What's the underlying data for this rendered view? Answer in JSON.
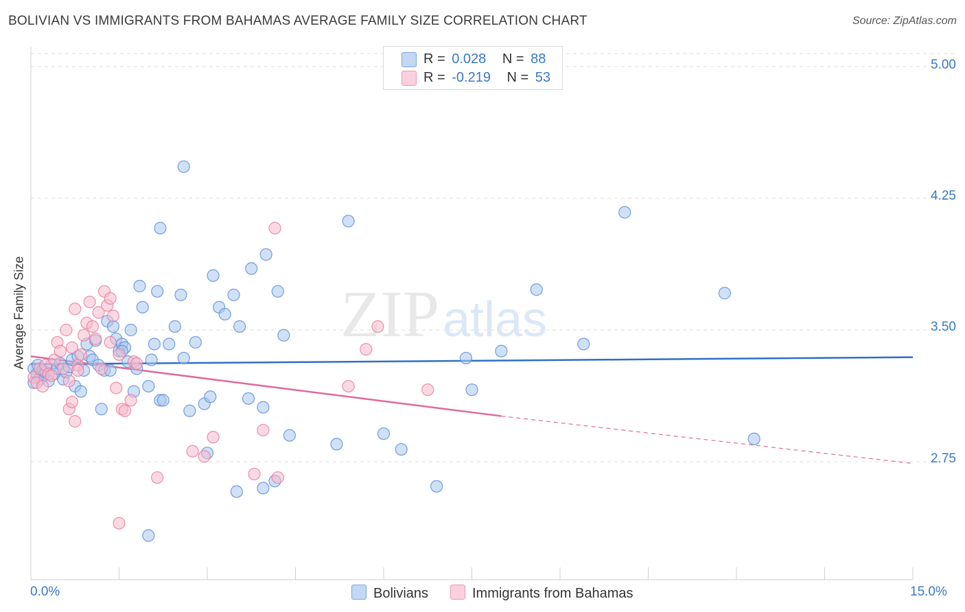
{
  "header": {
    "title": "BOLIVIAN VS IMMIGRANTS FROM BAHAMAS AVERAGE FAMILY SIZE CORRELATION CHART",
    "source": "Source: ZipAtlas.com"
  },
  "legend": {
    "series": [
      {
        "r_label": "R =",
        "r_value": "0.028",
        "n_label": "N =",
        "n_value": "88"
      },
      {
        "r_label": "R =",
        "r_value": "-0.219",
        "n_label": "N =",
        "n_value": "53"
      }
    ]
  },
  "watermark": {
    "zip": "ZIP",
    "atlas": "atlas"
  },
  "colors": {
    "blue_fill": "#a9c6ee",
    "blue_stroke": "#5b8fd6",
    "blue_line": "#2f6fc6",
    "pink_fill": "#f7b9cc",
    "pink_stroke": "#e87fa0",
    "pink_line": "#e0699a",
    "tick_text": "#3a78c9",
    "grid": "#dddddd"
  },
  "chart_data": {
    "type": "scatter",
    "title": "BOLIVIAN VS IMMIGRANTS FROM BAHAMAS AVERAGE FAMILY SIZE CORRELATION CHART",
    "xlabel": "",
    "ylabel": "Average Family Size",
    "xlim": [
      0,
      15
    ],
    "ylim": [
      2.0,
      5.1
    ],
    "x_tick_labels": [
      "0.0%",
      "15.0%"
    ],
    "y_ticks": [
      2.75,
      3.5,
      4.25,
      5.0
    ],
    "y_tick_labels": [
      "2.75",
      "3.50",
      "4.25",
      "5.00"
    ],
    "grid": true,
    "series": [
      {
        "name": "Bolivians",
        "color": "#a9c6ee",
        "points": [
          [
            0.05,
            3.28
          ],
          [
            0.1,
            3.25
          ],
          [
            0.12,
            3.3
          ],
          [
            0.15,
            3.22
          ],
          [
            0.2,
            3.27
          ],
          [
            0.22,
            3.24
          ],
          [
            0.25,
            3.26
          ],
          [
            0.3,
            3.21
          ],
          [
            0.35,
            3.3
          ],
          [
            0.4,
            3.25
          ],
          [
            0.45,
            3.28
          ],
          [
            0.5,
            3.31
          ],
          [
            0.55,
            3.22
          ],
          [
            0.6,
            3.26
          ],
          [
            0.65,
            3.29
          ],
          [
            0.7,
            3.33
          ],
          [
            0.75,
            3.18
          ],
          [
            0.8,
            3.35
          ],
          [
            0.85,
            3.15
          ],
          [
            0.9,
            3.27
          ],
          [
            0.95,
            3.42
          ],
          [
            1.0,
            3.35
          ],
          [
            1.05,
            3.33
          ],
          [
            1.1,
            3.44
          ],
          [
            1.15,
            3.3
          ],
          [
            1.2,
            3.05
          ],
          [
            1.25,
            3.27
          ],
          [
            1.3,
            3.55
          ],
          [
            1.35,
            3.27
          ],
          [
            1.4,
            3.52
          ],
          [
            1.45,
            3.45
          ],
          [
            1.5,
            3.38
          ],
          [
            1.55,
            3.42
          ],
          [
            1.6,
            3.4
          ],
          [
            1.65,
            3.32
          ],
          [
            1.7,
            3.5
          ],
          [
            1.75,
            3.15
          ],
          [
            1.8,
            3.28
          ],
          [
            1.85,
            3.75
          ],
          [
            1.9,
            3.63
          ],
          [
            2.0,
            3.18
          ],
          [
            2.05,
            3.33
          ],
          [
            2.1,
            3.42
          ],
          [
            2.15,
            3.72
          ],
          [
            2.2,
            3.1
          ],
          [
            2.25,
            3.1
          ],
          [
            2.35,
            3.42
          ],
          [
            2.45,
            3.52
          ],
          [
            2.55,
            3.7
          ],
          [
            2.6,
            3.34
          ],
          [
            2.7,
            3.04
          ],
          [
            2.8,
            3.43
          ],
          [
            2.95,
            3.08
          ],
          [
            3.05,
            3.12
          ],
          [
            3.2,
            3.63
          ],
          [
            3.3,
            3.59
          ],
          [
            3.45,
            3.7
          ],
          [
            3.55,
            3.52
          ],
          [
            3.7,
            3.11
          ],
          [
            3.95,
            3.06
          ],
          [
            4.2,
            3.72
          ],
          [
            4.3,
            3.47
          ],
          [
            2.6,
            4.43
          ],
          [
            2.2,
            4.08
          ],
          [
            4.0,
            3.93
          ],
          [
            3.75,
            3.85
          ],
          [
            3.1,
            3.81
          ],
          [
            5.4,
            4.12
          ],
          [
            7.4,
            3.34
          ],
          [
            7.5,
            3.16
          ],
          [
            8.0,
            3.38
          ],
          [
            8.6,
            3.73
          ],
          [
            9.4,
            3.42
          ],
          [
            10.1,
            4.17
          ],
          [
            11.8,
            3.71
          ],
          [
            12.3,
            2.88
          ],
          [
            1.55,
            3.38
          ],
          [
            0.05,
            3.2
          ],
          [
            5.2,
            2.85
          ],
          [
            6.0,
            2.91
          ],
          [
            6.3,
            2.82
          ],
          [
            4.4,
            2.9
          ],
          [
            4.15,
            2.64
          ],
          [
            3.0,
            2.8
          ],
          [
            3.95,
            2.6
          ],
          [
            3.5,
            2.58
          ],
          [
            6.9,
            2.61
          ],
          [
            2.0,
            2.33
          ]
        ]
      },
      {
        "name": "Immigrants from Bahamas",
        "color": "#f7b9cc",
        "points": [
          [
            0.05,
            3.23
          ],
          [
            0.1,
            3.2
          ],
          [
            0.15,
            3.28
          ],
          [
            0.2,
            3.18
          ],
          [
            0.25,
            3.3
          ],
          [
            0.3,
            3.25
          ],
          [
            0.35,
            3.24
          ],
          [
            0.4,
            3.33
          ],
          [
            0.45,
            3.43
          ],
          [
            0.5,
            3.38
          ],
          [
            0.55,
            3.28
          ],
          [
            0.6,
            3.5
          ],
          [
            0.65,
            3.21
          ],
          [
            0.7,
            3.4
          ],
          [
            0.75,
            3.62
          ],
          [
            0.8,
            3.3
          ],
          [
            0.85,
            3.36
          ],
          [
            0.9,
            3.47
          ],
          [
            0.95,
            3.54
          ],
          [
            1.0,
            3.66
          ],
          [
            1.05,
            3.52
          ],
          [
            1.1,
            3.45
          ],
          [
            1.15,
            3.6
          ],
          [
            1.2,
            3.28
          ],
          [
            1.25,
            3.72
          ],
          [
            1.3,
            3.64
          ],
          [
            1.35,
            3.43
          ],
          [
            1.4,
            3.58
          ],
          [
            1.45,
            3.17
          ],
          [
            1.5,
            3.36
          ],
          [
            1.55,
            3.05
          ],
          [
            1.6,
            3.04
          ],
          [
            1.7,
            3.1
          ],
          [
            1.75,
            3.32
          ],
          [
            1.8,
            3.31
          ],
          [
            0.65,
            3.05
          ],
          [
            0.7,
            3.09
          ],
          [
            0.8,
            3.27
          ],
          [
            1.35,
            3.68
          ],
          [
            0.75,
            2.98
          ],
          [
            3.1,
            2.89
          ],
          [
            2.75,
            2.81
          ],
          [
            3.95,
            2.93
          ],
          [
            3.8,
            2.68
          ],
          [
            2.15,
            2.66
          ],
          [
            2.95,
            2.78
          ],
          [
            4.2,
            2.66
          ],
          [
            5.4,
            3.18
          ],
          [
            5.7,
            3.39
          ],
          [
            5.9,
            3.52
          ],
          [
            6.75,
            3.16
          ],
          [
            4.15,
            4.08
          ],
          [
            1.5,
            2.4
          ]
        ]
      }
    ],
    "trend_lines": [
      {
        "series": "Bolivians",
        "x": [
          0,
          15
        ],
        "y": [
          3.305,
          3.345
        ]
      },
      {
        "series": "Immigrants from Bahamas",
        "x": [
          0,
          8.0,
          15
        ],
        "y": [
          3.35,
          3.01,
          2.74
        ],
        "dashed_after_x": 8.0
      }
    ]
  }
}
